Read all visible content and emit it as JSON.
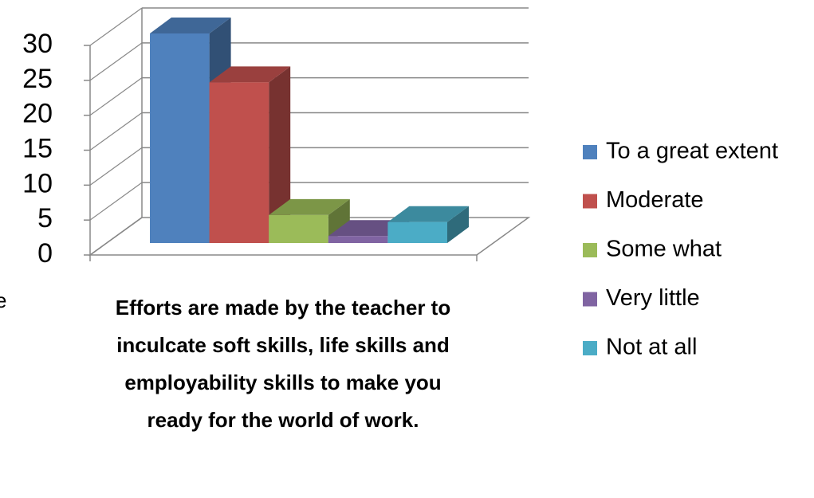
{
  "fragment": "e",
  "chart_data": {
    "type": "bar3d",
    "categories": [
      "Efforts are made by the teacher to inculcate soft skills, life skills and employability skills to make you ready for the world of work."
    ],
    "series": [
      {
        "name": "To a great extent",
        "color": "#4f81bd",
        "values": [
          30
        ]
      },
      {
        "name": "Moderate",
        "color": "#c0504d",
        "values": [
          23
        ]
      },
      {
        "name": "Some what",
        "color": "#9bbb59",
        "values": [
          4
        ]
      },
      {
        "name": "Very little",
        "color": "#8064a2",
        "values": [
          1
        ]
      },
      {
        "name": "Not at all",
        "color": "#4bacc6",
        "values": [
          3
        ]
      }
    ],
    "ylim": [
      0,
      30
    ],
    "yticks": [
      0,
      5,
      10,
      15,
      20,
      25,
      30
    ],
    "grid": true,
    "legend": "right"
  }
}
